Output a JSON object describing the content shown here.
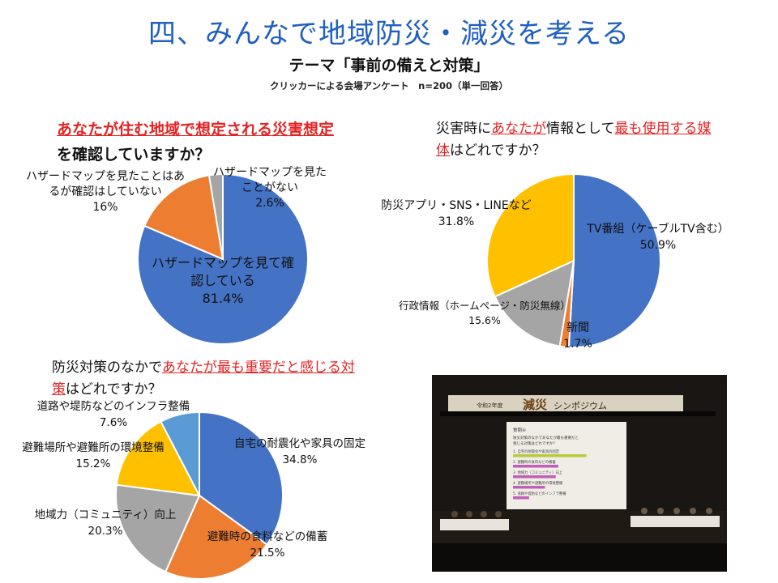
{
  "title": "四、みんなで地域防災・減災を考える",
  "subtitle": "テーマ「事前の備えと対策」",
  "survey_note": "クリッカーによる会場アンケート　n=200（単一回答）",
  "colors": {
    "title": "#1f5fbf",
    "highlight": "#e32222",
    "blue": "#4472c4",
    "orange": "#ed7d31",
    "gray": "#a5a5a5",
    "yellow": "#ffc000",
    "lightblue": "#5b9bd5"
  },
  "questions": {
    "q1": {
      "red": "あなたが住む地域で想定される災害想定",
      "black": "を確認していますか？"
    },
    "q2": {
      "pre": "災害時に",
      "red1": "あなたが",
      "mid": "情報として",
      "red2": "最も使用する媒体",
      "post": "はどれですか？"
    },
    "q3": {
      "pre": "防災対策のなかで",
      "red1": "あなたが",
      "red2": "最も重要だと感じる対策",
      "post": "はどれですか？"
    }
  },
  "chart_data": [
    {
      "type": "pie",
      "title": "あなたが住む地域で想定される災害想定を確認していますか？",
      "labels": [
        "ハザードマップを見て確認している",
        "ハザードマップを見たことはあるが確認はしていない",
        "ハザードマップを見たことがない"
      ],
      "values": [
        81.4,
        16,
        2.6
      ],
      "value_labels": [
        "81.4%",
        "16%",
        "2.6%"
      ],
      "label_lines": [
        [
          "ハザードマップを見て確",
          "認している",
          "81.4%"
        ],
        [
          "ハザードマップを見たことはあ",
          "るが確認はしていない",
          "16%"
        ],
        [
          "ハザードマップを見た",
          "ことがない",
          "2.6%"
        ]
      ],
      "colors": [
        "#4472c4",
        "#ed7d31",
        "#a5a5a5"
      ]
    },
    {
      "type": "pie",
      "title": "災害時にあなたが情報として最も使用する媒体はどれですか？",
      "labels": [
        "TV番組（ケーブルTV含む）",
        "新聞",
        "行政情報（ホームページ・防災無線）",
        "防災アプリ・SNS・LINEなど"
      ],
      "values": [
        50.9,
        1.7,
        15.6,
        31.8
      ],
      "value_labels": [
        "50.9%",
        "1.7%",
        "15.6%",
        "31.8%"
      ],
      "label_lines": [
        [
          "TV番組（ケーブルTV含む）",
          "50.9%"
        ],
        [
          "新聞",
          "1.7%"
        ],
        [
          "行政情報（ホームページ・防災無線）",
          "15.6%"
        ],
        [
          "防災アプリ・SNS・LINEなど",
          "31.8%"
        ]
      ],
      "colors": [
        "#4472c4",
        "#ed7d31",
        "#a5a5a5",
        "#ffc000"
      ]
    },
    {
      "type": "pie",
      "title": "防災対策のなかであなたが最も重要だと感じる対策はどれですか？",
      "labels": [
        "自宅の耐震化や家具の固定",
        "避難時の食料などの備蓄",
        "地域力（コミュニティ）向上",
        "避難場所や避難所の環境整備",
        "道路や堤防などのインフラ整備"
      ],
      "values": [
        34.8,
        21.5,
        20.3,
        15.2,
        7.6
      ],
      "value_labels": [
        "34.8%",
        "21.5%",
        "20.3%",
        "15.2%",
        "7.6%"
      ],
      "label_lines": [
        [
          "自宅の耐震化や家具の固定",
          "34.8%"
        ],
        [
          "避難時の食料などの備蓄",
          "21.5%"
        ],
        [
          "地域力（コミュニティ）向上",
          "20.3%"
        ],
        [
          "避難場所や避難所の環境整備",
          "15.2%"
        ],
        [
          "道路や堤防などのインフラ整備",
          "7.6%"
        ]
      ],
      "colors": [
        "#4472c4",
        "#ed7d31",
        "#a5a5a5",
        "#ffc000",
        "#5b9bd5"
      ]
    }
  ],
  "photo": {
    "banner": {
      "year": "令和2年度",
      "main": "減災",
      "sub": "シンポジウム"
    },
    "screen": {
      "heading": "質問④",
      "question": [
        "防災対策のなかであなたが最も重要だと",
        "感じる対策はどれですか？"
      ],
      "options": [
        "1. 自宅の耐震化や家具の固定",
        "2. 避難時の食料などの備蓄",
        "3. 地域力（コミュニティ）向上",
        "4. 避難場所や避難所の環境整備",
        "5. 道路や堤防などのインフラ整備"
      ]
    }
  }
}
